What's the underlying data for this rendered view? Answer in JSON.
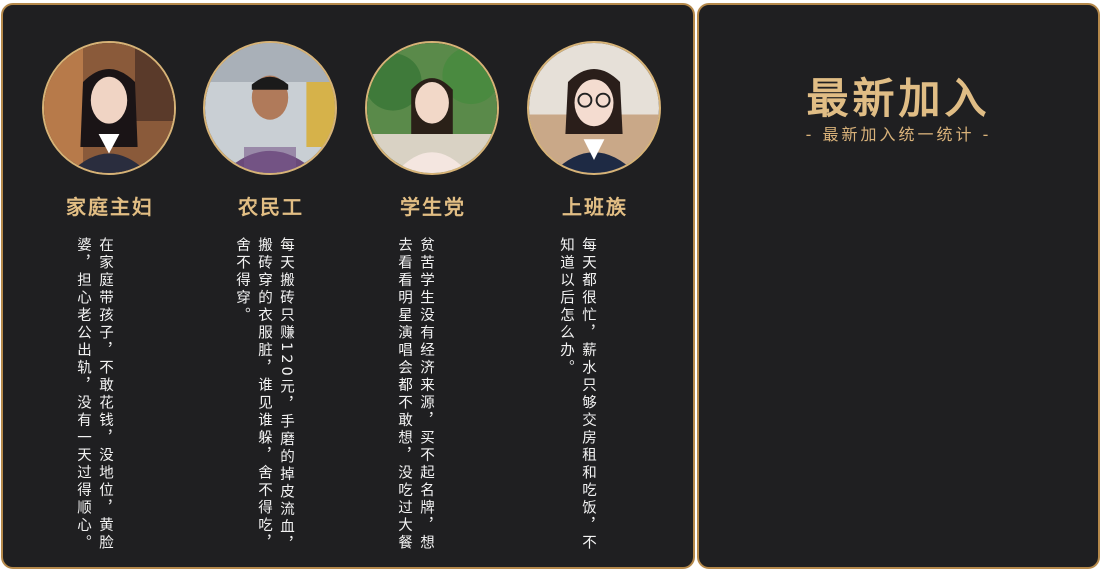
{
  "personas": [
    {
      "role": "家庭主妇",
      "desc": "在家庭带孩子，不敢花钱，没地位，黄脸婆，担心老公出轨，没有一天过得顺心。"
    },
    {
      "role": "农民工",
      "desc": "每天搬砖只赚120元，手磨的掉皮流血，搬砖穿的衣服脏，谁见谁躲，舍不得吃，舍不得穿。"
    },
    {
      "role": "学生党",
      "desc": "贫苦学生没有经济来源，买不起名牌，想去看看明星演唱会都不敢想，没吃过大餐"
    },
    {
      "role": "上班族",
      "desc": "每天都很忙，薪水只够交房租和吃饭，不知道以后怎么办。"
    }
  ],
  "new_join": {
    "title": "最新加入",
    "subtitle": "- 最新加入统一统计 -"
  },
  "colors": {
    "gold": "#e2be84",
    "panel_bg": "#1f1f21",
    "border": "#b5894b"
  }
}
